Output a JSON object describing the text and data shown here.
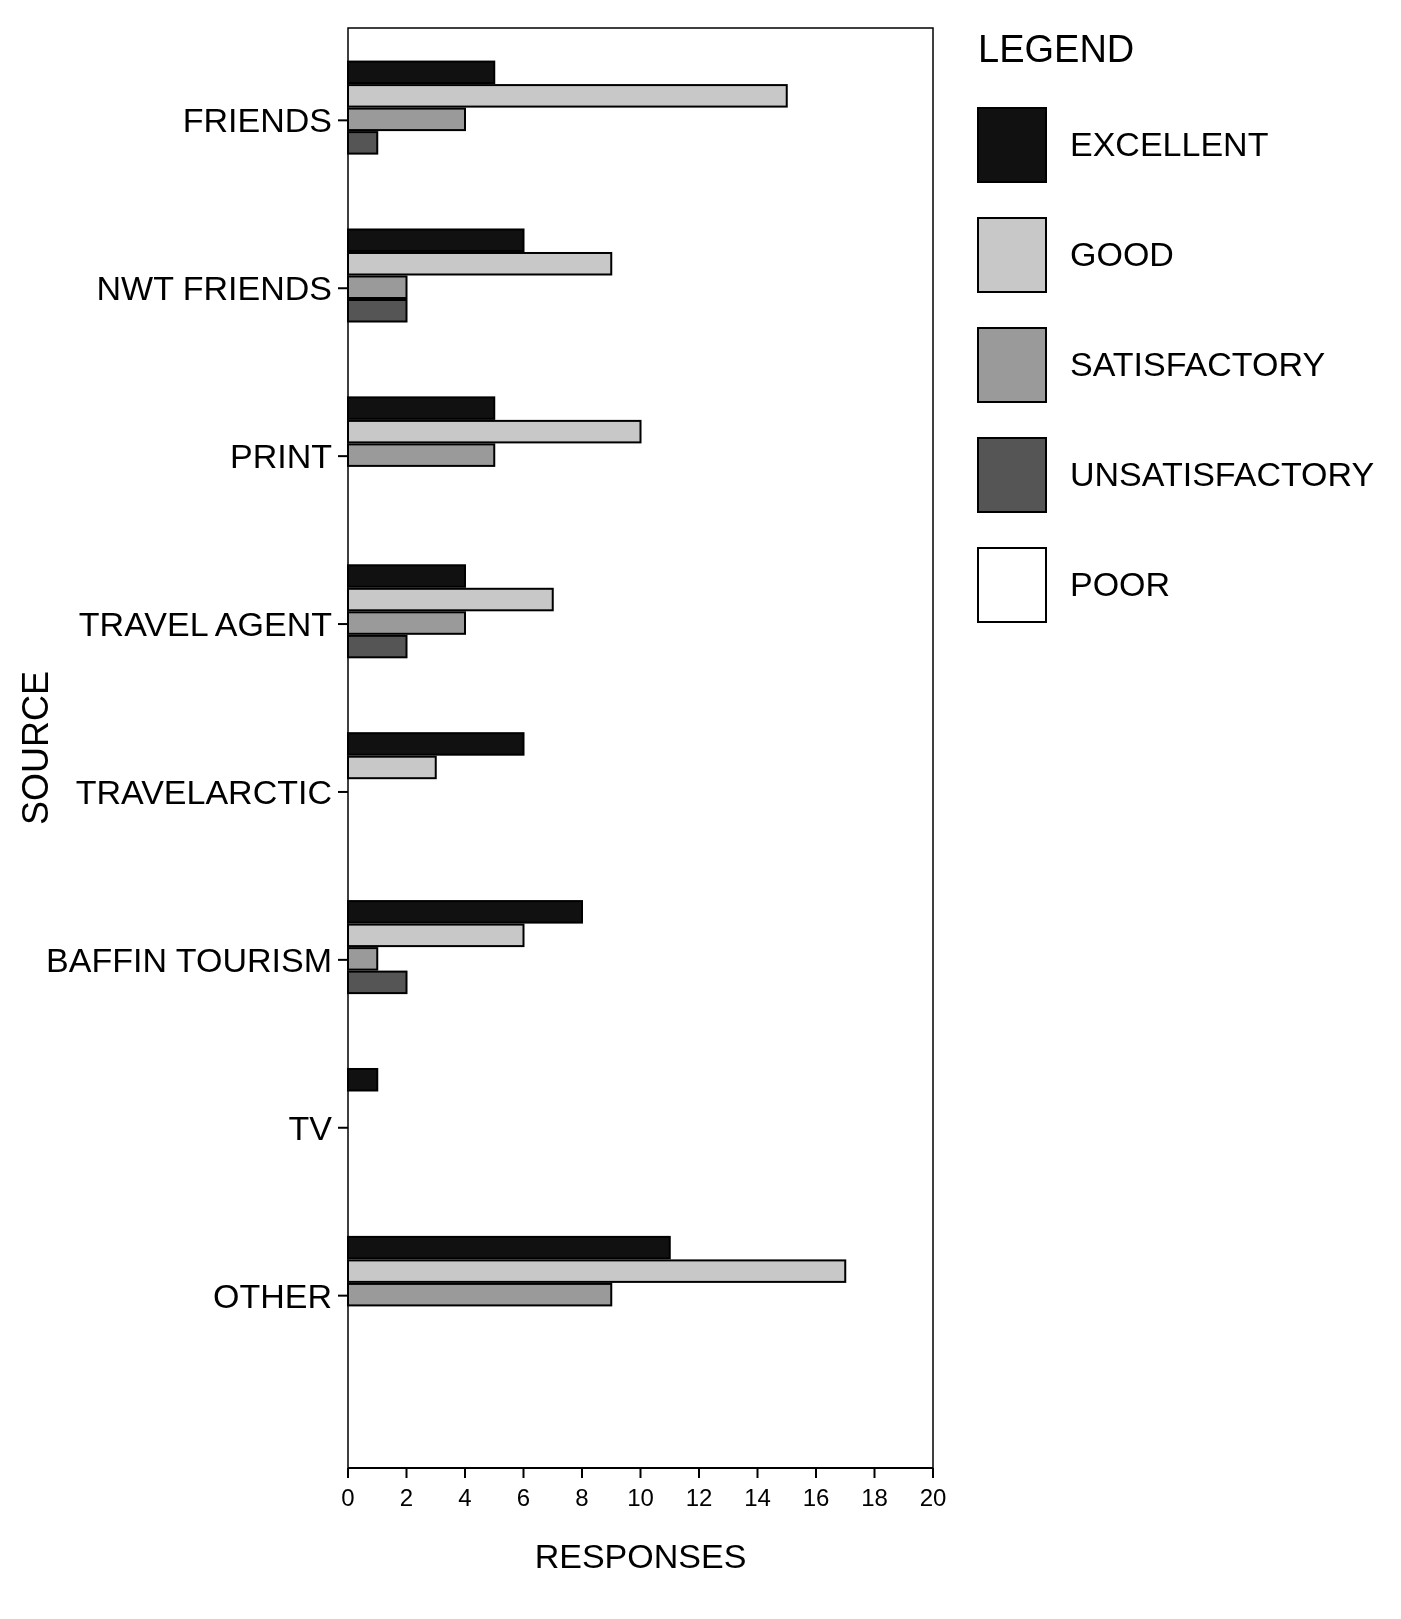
{
  "chart_data": {
    "type": "bar",
    "orientation": "horizontal",
    "xlabel": "RESPONSES",
    "ylabel": "SOURCE",
    "legend_title": "LEGEND",
    "legend": "top right",
    "categories": [
      "FRIENDS",
      "NWT FRIENDS",
      "PRINT",
      "TRAVEL AGENT",
      "TRAVELARCTIC",
      "BAFFIN TOURISM",
      "TV",
      "OTHER"
    ],
    "series": [
      {
        "name": "EXCELLENT",
        "color": "#111111",
        "values": [
          5,
          6,
          5,
          4,
          6,
          8,
          1,
          11
        ]
      },
      {
        "name": "GOOD",
        "color": "#c8c8c8",
        "values": [
          15,
          9,
          10,
          7,
          3,
          6,
          0,
          17
        ]
      },
      {
        "name": "SATISFACTORY",
        "color": "#9a9a9a",
        "values": [
          4,
          2,
          5,
          4,
          0,
          1,
          0,
          9
        ]
      },
      {
        "name": "UNSATISFACTORY",
        "color": "#555555",
        "values": [
          1,
          2,
          0,
          2,
          0,
          2,
          0,
          0
        ]
      },
      {
        "name": "POOR",
        "color": "#ffffff",
        "values": [
          0,
          0,
          0,
          0,
          0,
          0,
          0,
          0
        ]
      }
    ],
    "xlim": [
      0,
      20
    ],
    "xticks": [
      0,
      2,
      4,
      6,
      8,
      10,
      12,
      14,
      16,
      18,
      20
    ]
  }
}
